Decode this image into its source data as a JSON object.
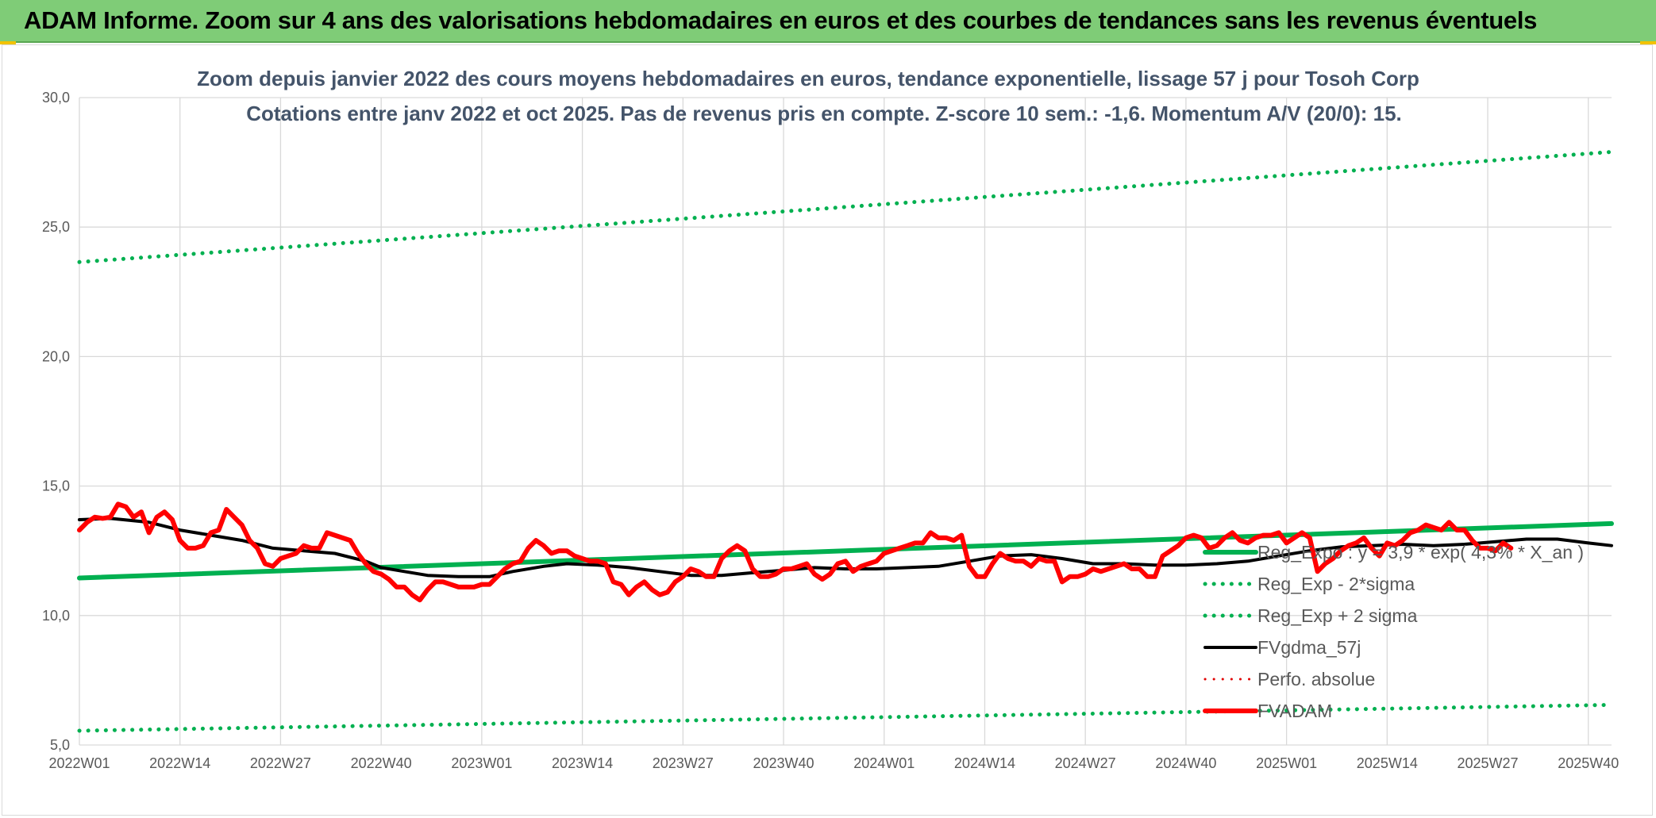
{
  "banner": {
    "title": "ADAM Informe. Zoom sur 4 ans des valorisations hebdomadaires en euros et des courbes de tendances sans les revenus éventuels"
  },
  "colors": {
    "banner": "#7fcc77",
    "reg_expo": "#00b050",
    "fvgdma": "#000000",
    "perfo": "#e00000",
    "fvadam": "#ff0000",
    "grid": "#d9d9d9",
    "title": "#44546a",
    "axis_text": "#595959"
  },
  "chart_data": {
    "type": "line",
    "title": "Zoom depuis janvier 2022 des cours moyens hebdomadaires en euros, tendance exponentielle, lissage 57 j pour Tosoh Corp",
    "subtitle": "Cotations entre janv 2022 et oct 2025. Pas de revenus pris en compte. Z-score 10 sem.: -1,6. Momentum A/V (20/0): 15.",
    "xlabel": "",
    "ylabel": "",
    "ylim": [
      5,
      30
    ],
    "yticks": [
      "5,0",
      "10,0",
      "15,0",
      "20,0",
      "25,0",
      "30,0"
    ],
    "xticks": [
      "2022W01",
      "2022W14",
      "2022W27",
      "2022W40",
      "2023W01",
      "2023W14",
      "2023W27",
      "2023W40",
      "2024W01",
      "2024W14",
      "2024W27",
      "2024W40",
      "2025W01",
      "2025W14",
      "2025W27",
      "2025W40"
    ],
    "x_range_weeks": [
      1,
      199
    ],
    "grid": true,
    "legend_position": "right-inside",
    "series": [
      {
        "name": "Reg_Expo : y = 3,9 * exp( 4,3% *  X_an )",
        "style": "solid",
        "color": "#00b050",
        "width": 6,
        "points": [
          [
            1,
            11.45
          ],
          [
            199,
            13.55
          ]
        ]
      },
      {
        "name": "Reg_Exp - 2*sigma",
        "style": "dotted",
        "color": "#00b050",
        "width": 5,
        "points": [
          [
            1,
            5.55
          ],
          [
            199,
            6.55
          ]
        ]
      },
      {
        "name": "Reg_Exp + 2 sigma",
        "style": "dotted",
        "color": "#00b050",
        "width": 5,
        "points": [
          [
            1,
            23.65
          ],
          [
            199,
            27.9
          ]
        ]
      },
      {
        "name": "FVgdma_57j",
        "style": "solid",
        "color": "#000000",
        "width": 4,
        "points": [
          [
            1,
            13.7
          ],
          [
            5,
            13.75
          ],
          [
            10,
            13.6
          ],
          [
            14,
            13.3
          ],
          [
            18,
            13.1
          ],
          [
            22,
            12.9
          ],
          [
            26,
            12.6
          ],
          [
            30,
            12.5
          ],
          [
            34,
            12.4
          ],
          [
            38,
            12.1
          ],
          [
            40,
            11.85
          ],
          [
            43,
            11.7
          ],
          [
            46,
            11.55
          ],
          [
            50,
            11.5
          ],
          [
            54,
            11.5
          ],
          [
            57,
            11.7
          ],
          [
            61,
            11.9
          ],
          [
            64,
            12.0
          ],
          [
            68,
            11.95
          ],
          [
            72,
            11.85
          ],
          [
            76,
            11.7
          ],
          [
            80,
            11.55
          ],
          [
            84,
            11.55
          ],
          [
            88,
            11.65
          ],
          [
            92,
            11.75
          ],
          [
            96,
            11.85
          ],
          [
            100,
            11.8
          ],
          [
            104,
            11.8
          ],
          [
            108,
            11.85
          ],
          [
            112,
            11.9
          ],
          [
            116,
            12.1
          ],
          [
            120,
            12.3
          ],
          [
            124,
            12.35
          ],
          [
            128,
            12.2
          ],
          [
            132,
            12.0
          ],
          [
            136,
            12.0
          ],
          [
            140,
            11.95
          ],
          [
            144,
            11.95
          ],
          [
            148,
            12.0
          ],
          [
            152,
            12.1
          ],
          [
            156,
            12.3
          ],
          [
            160,
            12.5
          ],
          [
            164,
            12.65
          ],
          [
            168,
            12.7
          ],
          [
            172,
            12.75
          ],
          [
            176,
            12.7
          ],
          [
            180,
            12.75
          ],
          [
            184,
            12.85
          ],
          [
            188,
            12.95
          ],
          [
            192,
            12.95
          ],
          [
            196,
            12.8
          ],
          [
            199,
            12.7
          ]
        ]
      },
      {
        "name": "Perfo. absolue",
        "style": "dotted",
        "color": "#e00000",
        "width": 3,
        "points": []
      },
      {
        "name": "FVADAM",
        "style": "solid",
        "color": "#ff0000",
        "width": 6,
        "points": [
          [
            1,
            13.3
          ],
          [
            2,
            13.6
          ],
          [
            3,
            13.8
          ],
          [
            4,
            13.75
          ],
          [
            5,
            13.8
          ],
          [
            6,
            14.3
          ],
          [
            7,
            14.2
          ],
          [
            8,
            13.8
          ],
          [
            9,
            14.0
          ],
          [
            10,
            13.2
          ],
          [
            11,
            13.8
          ],
          [
            12,
            14.0
          ],
          [
            13,
            13.7
          ],
          [
            14,
            12.9
          ],
          [
            15,
            12.6
          ],
          [
            16,
            12.6
          ],
          [
            17,
            12.7
          ],
          [
            18,
            13.2
          ],
          [
            19,
            13.3
          ],
          [
            20,
            14.1
          ],
          [
            21,
            13.8
          ],
          [
            22,
            13.5
          ],
          [
            23,
            12.9
          ],
          [
            24,
            12.6
          ],
          [
            25,
            12.0
          ],
          [
            26,
            11.9
          ],
          [
            27,
            12.2
          ],
          [
            28,
            12.3
          ],
          [
            29,
            12.4
          ],
          [
            30,
            12.7
          ],
          [
            31,
            12.6
          ],
          [
            32,
            12.6
          ],
          [
            33,
            13.2
          ],
          [
            34,
            13.1
          ],
          [
            35,
            13.0
          ],
          [
            36,
            12.9
          ],
          [
            37,
            12.4
          ],
          [
            38,
            12.0
          ],
          [
            39,
            11.7
          ],
          [
            40,
            11.6
          ],
          [
            41,
            11.4
          ],
          [
            42,
            11.1
          ],
          [
            43,
            11.1
          ],
          [
            44,
            10.8
          ],
          [
            45,
            10.6
          ],
          [
            46,
            11.0
          ],
          [
            47,
            11.3
          ],
          [
            48,
            11.3
          ],
          [
            49,
            11.2
          ],
          [
            50,
            11.1
          ],
          [
            51,
            11.1
          ],
          [
            52,
            11.1
          ],
          [
            53,
            11.2
          ],
          [
            54,
            11.2
          ],
          [
            55,
            11.5
          ],
          [
            56,
            11.8
          ],
          [
            57,
            12.0
          ],
          [
            58,
            12.1
          ],
          [
            59,
            12.6
          ],
          [
            60,
            12.9
          ],
          [
            61,
            12.7
          ],
          [
            62,
            12.4
          ],
          [
            63,
            12.5
          ],
          [
            64,
            12.5
          ],
          [
            65,
            12.3
          ],
          [
            66,
            12.2
          ],
          [
            67,
            12.1
          ],
          [
            68,
            12.1
          ],
          [
            69,
            12.0
          ],
          [
            70,
            11.3
          ],
          [
            71,
            11.2
          ],
          [
            72,
            10.8
          ],
          [
            73,
            11.1
          ],
          [
            74,
            11.3
          ],
          [
            75,
            11.0
          ],
          [
            76,
            10.8
          ],
          [
            77,
            10.9
          ],
          [
            78,
            11.3
          ],
          [
            79,
            11.5
          ],
          [
            80,
            11.8
          ],
          [
            81,
            11.7
          ],
          [
            82,
            11.5
          ],
          [
            83,
            11.5
          ],
          [
            84,
            12.2
          ],
          [
            85,
            12.5
          ],
          [
            86,
            12.7
          ],
          [
            87,
            12.5
          ],
          [
            88,
            11.8
          ],
          [
            89,
            11.5
          ],
          [
            90,
            11.5
          ],
          [
            91,
            11.6
          ],
          [
            92,
            11.8
          ],
          [
            93,
            11.8
          ],
          [
            94,
            11.9
          ],
          [
            95,
            12.0
          ],
          [
            96,
            11.6
          ],
          [
            97,
            11.4
          ],
          [
            98,
            11.6
          ],
          [
            99,
            12.0
          ],
          [
            100,
            12.1
          ],
          [
            101,
            11.7
          ],
          [
            102,
            11.9
          ],
          [
            103,
            12.0
          ],
          [
            104,
            12.1
          ],
          [
            105,
            12.4
          ],
          [
            106,
            12.5
          ],
          [
            107,
            12.6
          ],
          [
            108,
            12.7
          ],
          [
            109,
            12.8
          ],
          [
            110,
            12.8
          ],
          [
            111,
            13.2
          ],
          [
            112,
            13.0
          ],
          [
            113,
            13.0
          ],
          [
            114,
            12.9
          ],
          [
            115,
            13.1
          ],
          [
            116,
            11.9
          ],
          [
            117,
            11.5
          ],
          [
            118,
            11.5
          ],
          [
            119,
            12.0
          ],
          [
            120,
            12.4
          ],
          [
            121,
            12.2
          ],
          [
            122,
            12.1
          ],
          [
            123,
            12.1
          ],
          [
            124,
            11.9
          ],
          [
            125,
            12.2
          ],
          [
            126,
            12.1
          ],
          [
            127,
            12.1
          ],
          [
            128,
            11.3
          ],
          [
            129,
            11.5
          ],
          [
            130,
            11.5
          ],
          [
            131,
            11.6
          ],
          [
            132,
            11.8
          ],
          [
            133,
            11.7
          ],
          [
            134,
            11.8
          ],
          [
            135,
            11.9
          ],
          [
            136,
            12.0
          ],
          [
            137,
            11.8
          ],
          [
            138,
            11.8
          ],
          [
            139,
            11.5
          ],
          [
            140,
            11.5
          ],
          [
            141,
            12.3
          ],
          [
            142,
            12.5
          ],
          [
            143,
            12.7
          ],
          [
            144,
            13.0
          ],
          [
            145,
            13.1
          ],
          [
            146,
            13.0
          ],
          [
            147,
            12.6
          ],
          [
            148,
            12.7
          ],
          [
            149,
            13.0
          ],
          [
            150,
            13.2
          ],
          [
            151,
            12.9
          ],
          [
            152,
            12.8
          ],
          [
            153,
            13.0
          ],
          [
            154,
            13.1
          ],
          [
            155,
            13.1
          ],
          [
            156,
            13.2
          ],
          [
            157,
            12.8
          ],
          [
            158,
            13.0
          ],
          [
            159,
            13.2
          ],
          [
            160,
            13.0
          ],
          [
            161,
            11.7
          ],
          [
            162,
            12.0
          ],
          [
            163,
            12.2
          ],
          [
            164,
            12.5
          ],
          [
            165,
            12.7
          ],
          [
            166,
            12.8
          ],
          [
            167,
            13.0
          ],
          [
            168,
            12.6
          ],
          [
            169,
            12.3
          ],
          [
            170,
            12.8
          ],
          [
            171,
            12.7
          ],
          [
            172,
            12.9
          ],
          [
            173,
            13.2
          ],
          [
            174,
            13.3
          ],
          [
            175,
            13.5
          ],
          [
            176,
            13.4
          ],
          [
            177,
            13.3
          ],
          [
            178,
            13.6
          ],
          [
            179,
            13.3
          ],
          [
            180,
            13.3
          ],
          [
            181,
            12.9
          ],
          [
            182,
            12.6
          ],
          [
            183,
            12.6
          ],
          [
            184,
            12.5
          ],
          [
            185,
            12.8
          ],
          [
            186,
            12.6
          ]
        ]
      }
    ]
  }
}
